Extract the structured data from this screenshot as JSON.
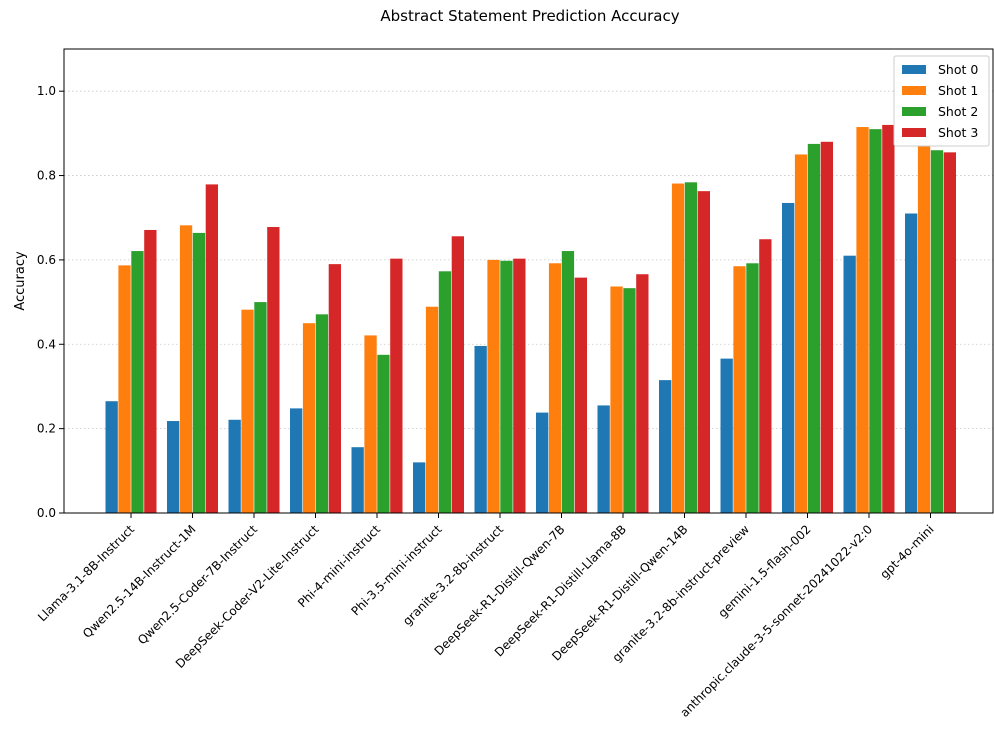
{
  "chart_data": {
    "type": "bar",
    "title": "Abstract Statement Prediction Accuracy",
    "xlabel": "",
    "ylabel": "Accuracy",
    "ylim": [
      0,
      1.1
    ],
    "yticks": [
      "0.0",
      "0.2",
      "0.4",
      "0.6",
      "0.8",
      "1.0"
    ],
    "grid": "y-dotted",
    "legend_position": "top-right",
    "categories": [
      "Llama-3.1-8B-Instruct",
      "Qwen2.5-14B-Instruct-1M",
      "Qwen2.5-Coder-7B-Instruct",
      "DeepSeek-Coder-V2-Lite-Instruct",
      "Phi-4-mini-instruct",
      "Phi-3.5-mini-instruct",
      "granite-3.2-8b-instruct",
      "DeepSeek-R1-Distill-Qwen-7B",
      "DeepSeek-R1-Distill-Llama-8B",
      "DeepSeek-R1-Distill-Qwen-14B",
      "granite-3.2-8b-instruct-preview",
      "gemini-1.5-flash-002",
      "anthropic.claude-3-5-sonnet-20241022-v2:0",
      "gpt-4o-mini"
    ],
    "series": [
      {
        "name": "Shot 0",
        "color": "#1f77b4",
        "values": [
          0.265,
          0.218,
          0.221,
          0.248,
          0.156,
          0.12,
          0.396,
          0.238,
          0.255,
          0.315,
          0.366,
          0.735,
          0.61,
          0.71
        ]
      },
      {
        "name": "Shot 1",
        "color": "#ff7f0e",
        "values": [
          0.587,
          0.682,
          0.482,
          0.45,
          0.421,
          0.489,
          0.6,
          0.592,
          0.537,
          0.781,
          0.585,
          0.85,
          0.915,
          0.87
        ]
      },
      {
        "name": "Shot 2",
        "color": "#2ca02c",
        "values": [
          0.621,
          0.664,
          0.5,
          0.471,
          0.375,
          0.573,
          0.598,
          0.621,
          0.533,
          0.784,
          0.592,
          0.875,
          0.91,
          0.86
        ]
      },
      {
        "name": "Shot 3",
        "color": "#d62728",
        "values": [
          0.671,
          0.779,
          0.678,
          0.59,
          0.603,
          0.656,
          0.603,
          0.558,
          0.566,
          0.763,
          0.649,
          0.88,
          0.92,
          0.855
        ]
      }
    ]
  }
}
